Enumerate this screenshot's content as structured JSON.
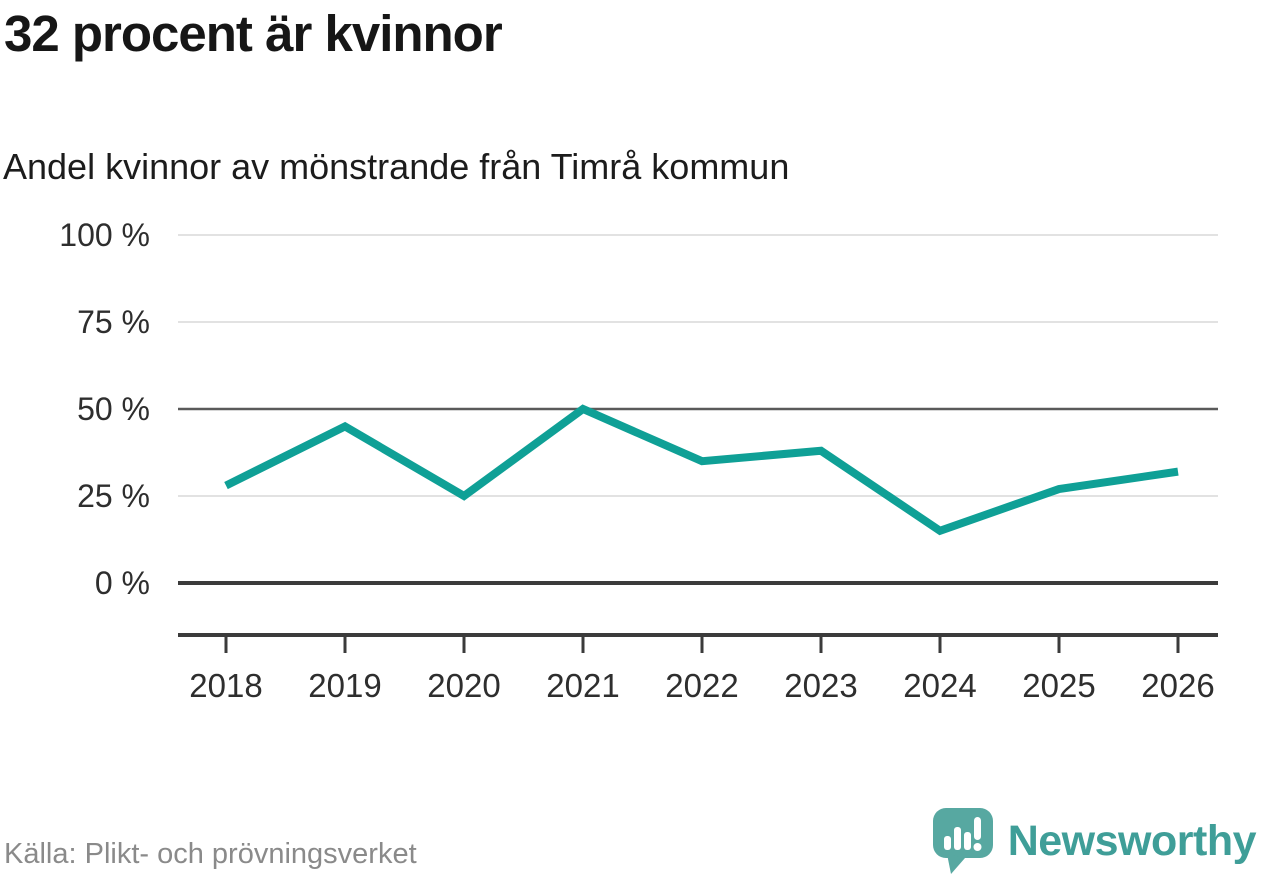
{
  "header": {
    "title": "32 procent är kvinnor",
    "subtitle": "Andel kvinnor av mönstrande från Timrå kommun"
  },
  "chart_data": {
    "type": "line",
    "title": "Andel kvinnor av mönstrande från Timrå kommun",
    "categories": [
      "2018",
      "2019",
      "2020",
      "2021",
      "2022",
      "2023",
      "2024",
      "2025",
      "2026"
    ],
    "series": [
      {
        "name": "Andel kvinnor av mönstrande",
        "values": [
          28,
          45,
          25,
          50,
          35,
          38,
          15,
          27,
          32
        ]
      }
    ],
    "unit": "%",
    "ylim": [
      0,
      100
    ],
    "yticks": [
      {
        "value": 0,
        "label": "0 %"
      },
      {
        "value": 25,
        "label": "25 %"
      },
      {
        "value": 50,
        "label": "50 %"
      },
      {
        "value": 75,
        "label": "75 %"
      },
      {
        "value": 100,
        "label": "100 %"
      }
    ],
    "grid": "horizontal",
    "legend": "none",
    "colors": {
      "line": "#0fa096",
      "grid_light": "#e2e2e2",
      "grid_mid": "#5a5a5a",
      "axis_dark": "#3b3b3b",
      "tick_text": "#2e2e2e"
    }
  },
  "footer": {
    "source": "Källa: Plikt- och prövningsverket",
    "brand": "Newsworthy",
    "brand_color": "#3f9e98",
    "logo_color": "#57a8a1"
  }
}
